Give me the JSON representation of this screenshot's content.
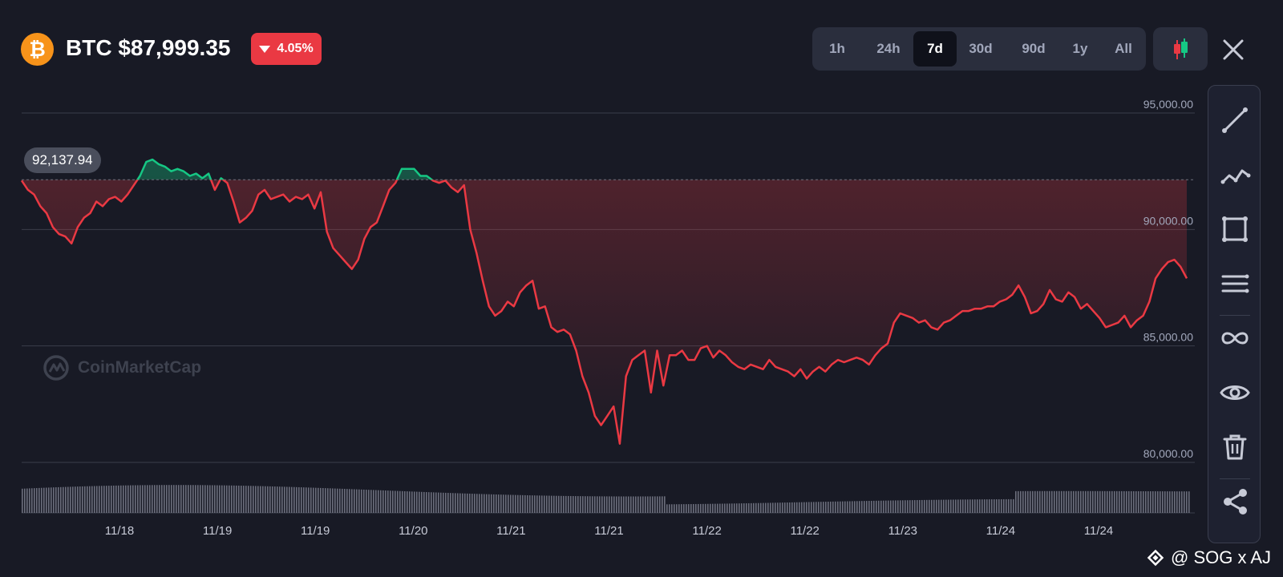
{
  "header": {
    "coin_symbol_glyph": "₿",
    "title": "BTC $87,999.35",
    "change": "4.05%",
    "change_direction": "down",
    "change_color": "#ea3943"
  },
  "ranges": [
    "1h",
    "24h",
    "7d",
    "30d",
    "90d",
    "1y",
    "All"
  ],
  "active_range": "7d",
  "toolbar": {
    "candle_icon": "candlestick-icon",
    "close_icon": "close-icon"
  },
  "tools": [
    "trend-line-icon",
    "multi-line-icon",
    "rectangle-icon",
    "parallel-lines-icon",
    "infinity-icon",
    "eye-icon",
    "trash-icon",
    "share-icon"
  ],
  "watermark": "CoinMarketCap",
  "credit": "@ SOG x AJ",
  "colors": {
    "background": "#181a25",
    "up": "#16c784",
    "down": "#ea3943",
    "grid": "#3a3e4a"
  },
  "chart_data": {
    "type": "line",
    "ylim": [
      80000,
      95000
    ],
    "y_ticks": [
      "95,000.00",
      "90,000.00",
      "85,000.00",
      "80,000.00"
    ],
    "y_tick_values": [
      95000,
      90000,
      85000,
      80000
    ],
    "x_ticks": [
      "11/18",
      "11/19",
      "11/19",
      "11/20",
      "11/21",
      "11/21",
      "11/22",
      "11/22",
      "11/23",
      "11/24",
      "11/24"
    ],
    "baseline": 92137.94,
    "baseline_label": "92,137.94",
    "grid": true,
    "series": [
      {
        "values": [
          92100,
          91700,
          91500,
          91000,
          90700,
          90100,
          89800,
          89700,
          89400,
          90100,
          90500,
          90700,
          91200,
          91000,
          91300,
          91400,
          91200,
          91500,
          91900,
          92300,
          92900,
          93000,
          92800,
          92700,
          92500,
          92600,
          92500,
          92300,
          92400,
          92200,
          92400,
          91700,
          92200,
          92000,
          91200,
          90300,
          90500,
          90800,
          91500,
          91700,
          91300,
          91400,
          91500,
          91200,
          91400,
          91300,
          91500,
          90900,
          91600,
          89900,
          89200,
          88900,
          88600,
          88300,
          88700,
          89600,
          90100,
          90300,
          91000,
          91700,
          92000,
          92600,
          92600,
          92600,
          92300,
          92300,
          92100,
          92000,
          92100,
          91800,
          91600,
          91900,
          90000,
          89000,
          87800,
          86700,
          86300,
          86500,
          86900,
          86700,
          87300,
          87600,
          87800,
          86600,
          86700,
          85800,
          85600,
          85700,
          85500,
          84800,
          83700,
          83000,
          82000,
          81600,
          82000,
          82400,
          80800,
          83700,
          84400,
          84600,
          84800,
          83000,
          84800,
          83300,
          84600,
          84600,
          84800,
          84400,
          84400,
          84900,
          85000,
          84500,
          84800,
          84600,
          84300,
          84100,
          84000,
          84200,
          84100,
          84000,
          84400,
          84100,
          84000,
          83900,
          83700,
          84000,
          83600,
          83900,
          84100,
          83900,
          84200,
          84400,
          84300,
          84400,
          84500,
          84400,
          84200,
          84600,
          84900,
          85100,
          86000,
          86400,
          86300,
          86200,
          86000,
          86100,
          85800,
          85700,
          86000,
          86100,
          86300,
          86500,
          86500,
          86600,
          86600,
          86700,
          86700,
          86900,
          87000,
          87200,
          87600,
          87100,
          86400,
          86500,
          86800,
          87400,
          87000,
          86900,
          87300,
          87100,
          86600,
          86800,
          86500,
          86200,
          85800,
          85900,
          86000,
          86300,
          85800,
          86100,
          86300,
          86900,
          87900,
          88300,
          88600,
          88700,
          88400,
          87900
        ]
      }
    ]
  }
}
